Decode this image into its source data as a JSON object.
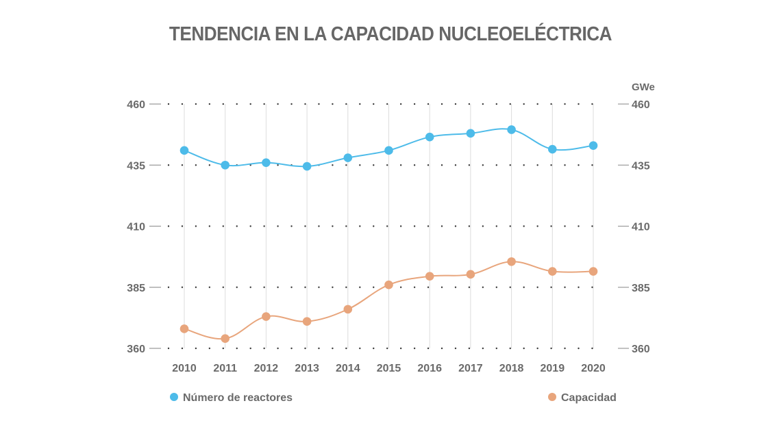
{
  "chart_data": {
    "type": "line",
    "title": "TENDENCIA EN LA CAPACIDAD NUCLEOELÉCTRICA",
    "right_axis_unit": "GWe",
    "categories": [
      "2010",
      "2011",
      "2012",
      "2013",
      "2014",
      "2015",
      "2016",
      "2017",
      "2018",
      "2019",
      "2020"
    ],
    "y_ticks": [
      360,
      385,
      410,
      435,
      460
    ],
    "ylim": [
      360,
      460
    ],
    "grid": "dotted horizontal, solid vertical",
    "legend_placement": "bottom",
    "series": [
      {
        "name": "Número de reactores",
        "color": "#4dbbe9",
        "values": [
          441,
          435,
          436,
          434.5,
          438,
          441,
          446.5,
          448,
          449.5,
          441.5,
          443
        ]
      },
      {
        "name": "Capacidad",
        "color": "#e8a57c",
        "values": [
          368,
          364,
          373,
          371,
          376,
          386,
          389.5,
          390.3,
          395.5,
          391.5,
          391.5
        ]
      }
    ]
  }
}
